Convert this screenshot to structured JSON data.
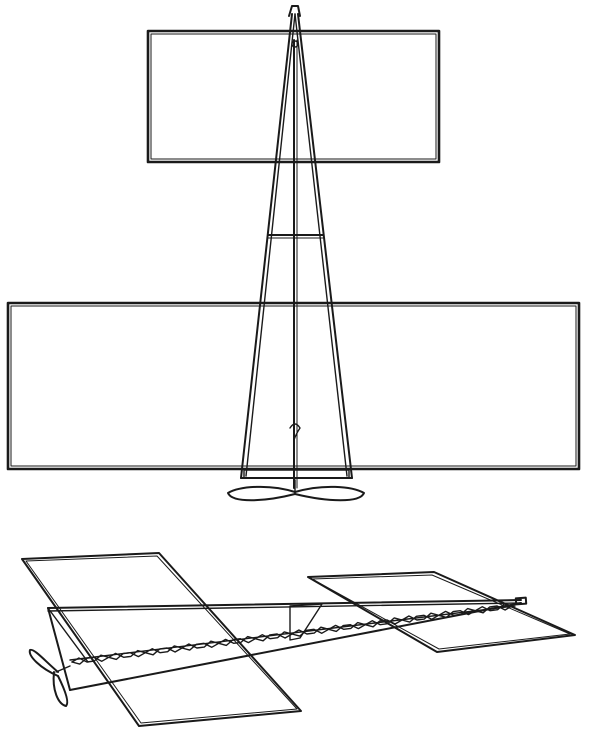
{
  "figure": {
    "views": [
      {
        "id": "plan-view",
        "parts": [
          "front-plane",
          "main-plane",
          "frame-spars",
          "rubber-motor",
          "propeller"
        ]
      },
      {
        "id": "perspective-view",
        "parts": [
          "main-plane",
          "front-plane",
          "frame-spars",
          "twisted-rubber-motor",
          "propeller"
        ]
      }
    ]
  },
  "colors": {
    "ink": "#1a1a1a",
    "paper": "#ffffff"
  }
}
